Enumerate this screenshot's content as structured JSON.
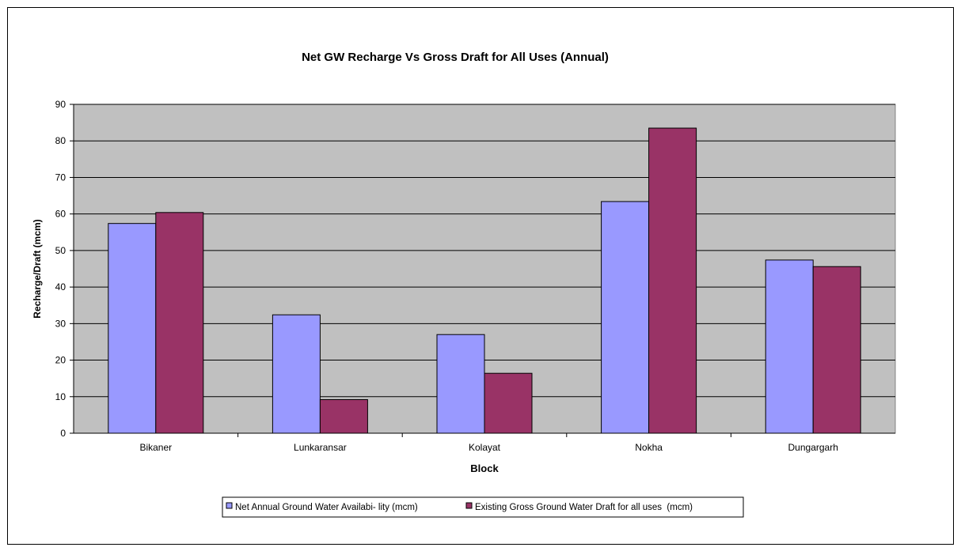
{
  "chart_data": {
    "type": "bar",
    "title": "Net GW Recharge Vs Gross Draft for All Uses (Annual)",
    "xlabel": "Block",
    "ylabel": "Recharge/Draft (mcm)",
    "categories": [
      "Bikaner",
      "Lunkaransar",
      "Kolayat",
      "Nokha",
      "Dungargarh"
    ],
    "series": [
      {
        "name": "Net Annual Ground Water Availabi- lity (mcm)",
        "color": "#9999ff",
        "values": [
          57.4,
          32.4,
          27.0,
          63.4,
          47.4
        ]
      },
      {
        "name": "Existing Gross Ground Water Draft for all uses  (mcm)",
        "color": "#993366",
        "values": [
          60.4,
          9.2,
          16.4,
          83.5,
          45.6
        ]
      }
    ],
    "ylim": [
      0,
      90
    ],
    "yticks": [
      "0",
      "10",
      "20",
      "30",
      "40",
      "50",
      "60",
      "70",
      "80",
      "90"
    ],
    "grid": true,
    "plot_background": "#c0c0c0",
    "legend_position": "bottom"
  }
}
